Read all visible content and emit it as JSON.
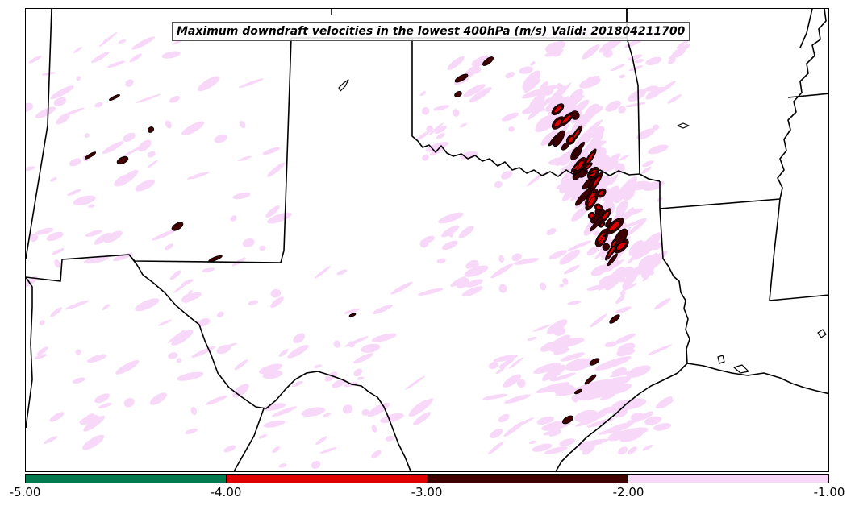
{
  "title": "Maximum downdraft velocities in the lowest 400hPa (m/s) Valid: 201804211700",
  "colorbar": {
    "segments": [
      {
        "range": "-5.00 to -4.00",
        "color": "#007a4e"
      },
      {
        "range": "-4.00 to -3.00",
        "color": "#e00000"
      },
      {
        "range": "-3.00 to -2.00",
        "color": "#3e0000"
      },
      {
        "range": "-2.00 to -1.00",
        "color": "#f8d8f8"
      }
    ],
    "ticks": [
      "-5.00",
      "-4.00",
      "-3.00",
      "-2.00",
      "-1.00"
    ]
  },
  "colors": {
    "light_pink": "#f8d8f8",
    "dark_red": "#3e0000",
    "red": "#e00000",
    "green": "#007a4e",
    "boundary": "#000000"
  }
}
